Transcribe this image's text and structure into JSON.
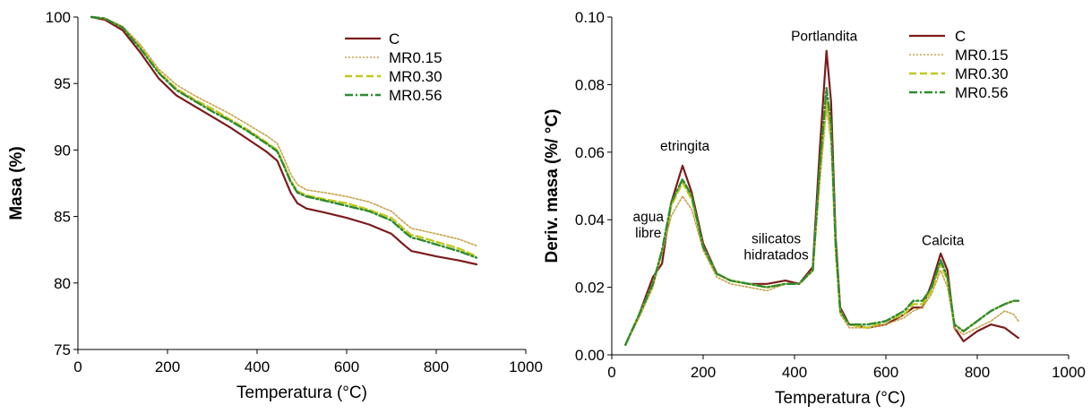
{
  "chart_data": [
    {
      "type": "line",
      "xlabel": "Temperatura (°C)",
      "ylabel": "Masa (%)",
      "xlim": [
        0,
        1000
      ],
      "ylim": [
        75,
        100
      ],
      "xticks": [
        0,
        200,
        400,
        600,
        800,
        1000
      ],
      "xtick_labels": [
        "0",
        "200",
        "400",
        "600",
        "800",
        "1000"
      ],
      "yticks": [
        75,
        80,
        85,
        90,
        95,
        100
      ],
      "ytick_labels": [
        "75",
        "80",
        "85",
        "90",
        "95",
        "100"
      ],
      "grid": false,
      "legend_position": "top-right",
      "series": [
        {
          "name": "C",
          "color": "#7b1b1b",
          "dash": "solid",
          "x": [
            30,
            60,
            100,
            140,
            180,
            220,
            260,
            300,
            340,
            380,
            420,
            445,
            460,
            475,
            490,
            510,
            550,
            600,
            650,
            700,
            730,
            745,
            760,
            800,
            850,
            890
          ],
          "y": [
            100,
            99.8,
            99.0,
            97.3,
            95.4,
            94.1,
            93.3,
            92.5,
            91.7,
            90.8,
            89.9,
            89.2,
            88.0,
            86.8,
            86.0,
            85.6,
            85.3,
            84.9,
            84.4,
            83.7,
            82.8,
            82.4,
            82.3,
            82.0,
            81.7,
            81.4
          ]
        },
        {
          "name": "MR0.15",
          "color": "#c8a24a",
          "dash": "dotted",
          "x": [
            30,
            60,
            100,
            140,
            180,
            220,
            260,
            300,
            340,
            380,
            420,
            445,
            460,
            475,
            490,
            510,
            550,
            600,
            650,
            700,
            730,
            745,
            760,
            800,
            850,
            890
          ],
          "y": [
            100,
            99.9,
            99.3,
            97.9,
            96.1,
            94.9,
            94.1,
            93.4,
            92.7,
            91.9,
            91.1,
            90.5,
            89.4,
            88.2,
            87.4,
            87.0,
            86.8,
            86.5,
            86.1,
            85.4,
            84.5,
            84.1,
            84.0,
            83.7,
            83.3,
            82.8
          ]
        },
        {
          "name": "MR0.30",
          "color": "#c2c81e",
          "dash": "dashed",
          "x": [
            30,
            60,
            100,
            140,
            180,
            220,
            260,
            300,
            340,
            380,
            420,
            445,
            460,
            475,
            490,
            510,
            550,
            600,
            650,
            700,
            730,
            745,
            760,
            800,
            850,
            890
          ],
          "y": [
            100,
            99.9,
            99.2,
            97.7,
            95.9,
            94.6,
            93.8,
            93.1,
            92.3,
            91.5,
            90.6,
            90.0,
            88.9,
            87.7,
            86.9,
            86.6,
            86.3,
            86.0,
            85.5,
            84.9,
            84.0,
            83.6,
            83.5,
            83.1,
            82.6,
            82.0
          ]
        },
        {
          "name": "MR0.56",
          "color": "#2e8b2e",
          "dash": "dashdot",
          "x": [
            30,
            60,
            100,
            140,
            180,
            220,
            260,
            300,
            340,
            380,
            420,
            445,
            460,
            475,
            490,
            510,
            550,
            600,
            650,
            700,
            730,
            745,
            760,
            800,
            850,
            890
          ],
          "y": [
            100,
            99.9,
            99.2,
            97.6,
            95.8,
            94.5,
            93.7,
            92.9,
            92.2,
            91.4,
            90.5,
            89.9,
            88.8,
            87.6,
            86.8,
            86.5,
            86.2,
            85.8,
            85.4,
            84.7,
            83.8,
            83.4,
            83.3,
            82.9,
            82.4,
            81.9
          ]
        }
      ]
    },
    {
      "type": "line",
      "xlabel": "Temperatura (°C)",
      "ylabel": "Deriv. masa (%/ °C)",
      "xlim": [
        0,
        1000
      ],
      "ylim": [
        0,
        0.1
      ],
      "xticks": [
        0,
        200,
        400,
        600,
        800,
        1000
      ],
      "xtick_labels": [
        "0",
        "200",
        "400",
        "600",
        "800",
        "1000"
      ],
      "yticks": [
        0,
        0.02,
        0.04,
        0.06,
        0.08,
        0.1
      ],
      "ytick_labels": [
        "0.00",
        "0.02",
        "0.04",
        "0.06",
        "0.08",
        "0.10"
      ],
      "grid": false,
      "legend_position": "top-right",
      "annotations": [
        {
          "lines": [
            "etringita"
          ],
          "x": 160,
          "y": 0.0605
        },
        {
          "lines": [
            "agua",
            "libre"
          ],
          "x": 80,
          "y": 0.0395
        },
        {
          "lines": [
            "silicatos",
            "hidratados"
          ],
          "x": 360,
          "y": 0.033
        },
        {
          "lines": [
            "Portlandita"
          ],
          "x": 465,
          "y": 0.093
        },
        {
          "lines": [
            "Calcita"
          ],
          "x": 725,
          "y": 0.0325
        }
      ],
      "series": [
        {
          "name": "C",
          "color": "#7b1b1b",
          "dash": "solid",
          "x": [
            30,
            60,
            90,
            110,
            130,
            155,
            175,
            200,
            230,
            260,
            300,
            340,
            380,
            410,
            440,
            455,
            470,
            480,
            490,
            500,
            520,
            560,
            600,
            640,
            660,
            680,
            700,
            720,
            735,
            750,
            770,
            800,
            830,
            860,
            880,
            890
          ],
          "y": [
            0.003,
            0.012,
            0.023,
            0.027,
            0.045,
            0.056,
            0.048,
            0.033,
            0.024,
            0.022,
            0.021,
            0.021,
            0.022,
            0.021,
            0.026,
            0.06,
            0.09,
            0.075,
            0.035,
            0.014,
            0.009,
            0.008,
            0.009,
            0.012,
            0.014,
            0.014,
            0.021,
            0.03,
            0.025,
            0.008,
            0.004,
            0.007,
            0.009,
            0.008,
            0.006,
            0.005
          ]
        },
        {
          "name": "MR0.15",
          "color": "#c8a24a",
          "dash": "dotted",
          "x": [
            30,
            60,
            90,
            110,
            130,
            155,
            175,
            200,
            230,
            260,
            300,
            340,
            380,
            410,
            440,
            455,
            470,
            480,
            490,
            500,
            520,
            560,
            600,
            640,
            660,
            680,
            700,
            720,
            735,
            750,
            770,
            800,
            830,
            860,
            880,
            890
          ],
          "y": [
            0.003,
            0.011,
            0.02,
            0.03,
            0.041,
            0.047,
            0.043,
            0.031,
            0.023,
            0.021,
            0.02,
            0.019,
            0.021,
            0.021,
            0.025,
            0.05,
            0.073,
            0.063,
            0.03,
            0.012,
            0.008,
            0.008,
            0.009,
            0.011,
            0.013,
            0.014,
            0.018,
            0.025,
            0.02,
            0.008,
            0.006,
            0.008,
            0.01,
            0.013,
            0.012,
            0.01
          ]
        },
        {
          "name": "MR0.30",
          "color": "#c2c81e",
          "dash": "dashed",
          "x": [
            30,
            60,
            90,
            110,
            130,
            155,
            175,
            200,
            230,
            260,
            300,
            340,
            380,
            410,
            440,
            455,
            470,
            480,
            490,
            500,
            520,
            560,
            600,
            640,
            660,
            680,
            700,
            720,
            735,
            750,
            770,
            800,
            830,
            860,
            880,
            890
          ],
          "y": [
            0.003,
            0.012,
            0.021,
            0.031,
            0.044,
            0.051,
            0.046,
            0.032,
            0.024,
            0.022,
            0.021,
            0.02,
            0.021,
            0.021,
            0.025,
            0.053,
            0.075,
            0.066,
            0.032,
            0.013,
            0.009,
            0.008,
            0.01,
            0.012,
            0.015,
            0.015,
            0.019,
            0.027,
            0.022,
            0.009,
            0.007,
            0.01,
            0.013,
            0.015,
            0.016,
            0.016
          ]
        },
        {
          "name": "MR0.56",
          "color": "#2e8b2e",
          "dash": "dashdot",
          "x": [
            30,
            60,
            90,
            110,
            130,
            155,
            175,
            200,
            230,
            260,
            300,
            340,
            380,
            410,
            440,
            455,
            470,
            480,
            490,
            500,
            520,
            560,
            600,
            640,
            660,
            680,
            700,
            720,
            735,
            750,
            770,
            800,
            830,
            860,
            880,
            890
          ],
          "y": [
            0.003,
            0.012,
            0.021,
            0.031,
            0.045,
            0.052,
            0.047,
            0.032,
            0.024,
            0.022,
            0.021,
            0.02,
            0.021,
            0.021,
            0.025,
            0.055,
            0.079,
            0.068,
            0.033,
            0.013,
            0.009,
            0.009,
            0.01,
            0.013,
            0.016,
            0.016,
            0.02,
            0.028,
            0.023,
            0.009,
            0.007,
            0.01,
            0.013,
            0.015,
            0.016,
            0.016
          ]
        }
      ]
    }
  ]
}
